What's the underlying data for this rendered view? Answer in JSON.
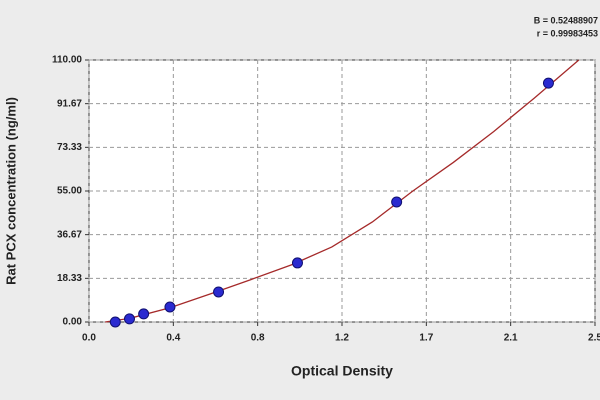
{
  "chart_data": {
    "type": "scatter",
    "x_label": "Optical Density",
    "y_label": "Rat PCX concentration (ng/ml)",
    "annotations": [
      "B = 0.52488907",
      "r = 0.99983453"
    ],
    "series": [
      {
        "type": "scatter",
        "color": "#2a2ad0",
        "x": [
          0.13,
          0.2,
          0.27,
          0.4,
          0.64,
          1.03,
          1.52,
          2.27
        ],
        "values": [
          0,
          1.3,
          3.4,
          6.3,
          12.6,
          24.8,
          50.4,
          100.3
        ]
      },
      {
        "type": "line",
        "color": "#a52a2a",
        "x": [
          0.08,
          0.2,
          0.4,
          0.6,
          0.8,
          1.0,
          1.2,
          1.4,
          1.6,
          1.8,
          2.0,
          2.2,
          2.42
        ],
        "values": [
          0,
          1.5,
          6,
          11.8,
          17.8,
          24,
          31.5,
          42,
          55,
          67,
          80,
          94,
          110
        ]
      }
    ],
    "xlim": [
      0,
      2.5
    ],
    "xticks": [
      {
        "value": 0,
        "label": "0.0"
      },
      {
        "value": 0.4167,
        "label": "0.4"
      },
      {
        "value": 0.8333,
        "label": "0.8"
      },
      {
        "value": 1.25,
        "label": "1.2"
      },
      {
        "value": 1.6667,
        "label": "1.7"
      },
      {
        "value": 2.0833,
        "label": "2.1"
      },
      2.5
    ],
    "ylim": [
      0,
      110
    ],
    "yticks": [
      {
        "value": 0,
        "label": "0.00"
      },
      18.33,
      36.67,
      {
        "value": 55,
        "label": "55.00"
      },
      73.33,
      91.67,
      {
        "value": 110,
        "label": "110.00"
      }
    ],
    "grid": true
  }
}
